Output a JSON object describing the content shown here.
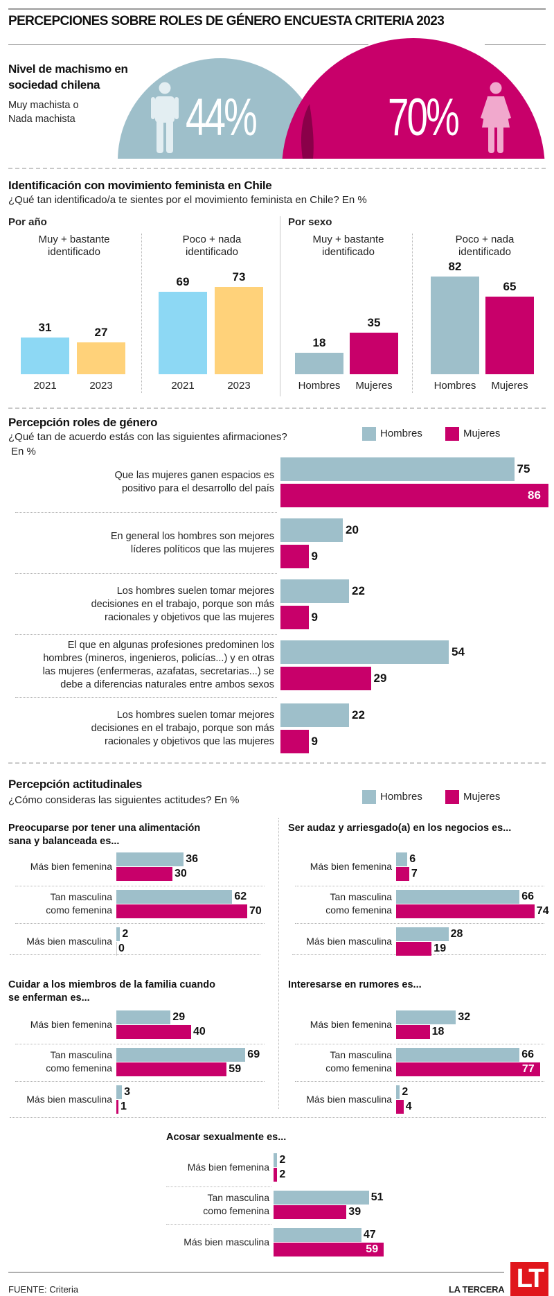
{
  "header": {
    "title": "PERCEPCIONES SOBRE ROLES DE GÉNERO ENCUESTA CRITERIA 2023"
  },
  "machismo": {
    "title_line1": "Nivel de machismo en",
    "title_line2": "sociedad chilena",
    "sub_line1": "Muy machista o",
    "sub_line2": "Nada machista",
    "men_value": "44%",
    "women_value": "70%",
    "men_icon": "man-icon",
    "women_icon": "woman-icon"
  },
  "colors": {
    "hombres": "#9ebfca",
    "mujeres": "#c8006a",
    "y2021": "#8dd8f4",
    "y2023": "#ffd27a",
    "logo": "#e0161c"
  },
  "legend": {
    "hombres": "Hombres",
    "mujeres": "Mujeres"
  },
  "chart_data": [
    {
      "type": "bar",
      "title": "Identificación con movimiento feminista en Chile",
      "subtitle": "¿Qué tan identificado/a te sientes por el movimiento feminista en Chile? En %",
      "panel": "Por año",
      "groups": [
        {
          "label": "Muy + bastante identificado",
          "categories": [
            "2021",
            "2023"
          ],
          "values": [
            31,
            27
          ]
        },
        {
          "label": "Poco + nada identificado",
          "categories": [
            "2021",
            "2023"
          ],
          "values": [
            69,
            73
          ]
        }
      ]
    },
    {
      "type": "bar",
      "panel": "Por sexo",
      "groups": [
        {
          "label": "Muy + bastante identificado",
          "categories": [
            "Hombres",
            "Mujeres"
          ],
          "values": [
            18,
            35
          ]
        },
        {
          "label": "Poco + nada identificado",
          "categories": [
            "Hombres",
            "Mujeres"
          ],
          "values": [
            82,
            65
          ]
        }
      ]
    },
    {
      "type": "bar",
      "orientation": "horizontal",
      "title": "Percepción roles de género",
      "subtitle": "¿Qué tan de acuerdo estás con las siguientes afirmaciones?",
      "unit": "En %",
      "legend": [
        "Hombres",
        "Mujeres"
      ],
      "legend_position": "top-right",
      "items": [
        {
          "label": "Que las mujeres ganen espacios es positivo para el desarrollo del país",
          "hombres": 75,
          "mujeres": 86
        },
        {
          "label": "En general los hombres son mejores líderes políticos que las mujeres",
          "hombres": 20,
          "mujeres": 9
        },
        {
          "label": "Los hombres suelen tomar mejores decisiones en el trabajo, porque son más racionales y objetivos que las mujeres",
          "hombres": 22,
          "mujeres": 9
        },
        {
          "label": "El que en algunas profesiones predominen los hombres (mineros, ingenieros, policías...) y en otras las mujeres (enfermeras, azafatas, secretarias...) se debe a diferencias naturales entre ambos sexos",
          "hombres": 54,
          "mujeres": 29
        },
        {
          "label": "Los hombres suelen tomar mejores decisiones en el trabajo, porque son más racionales y objetivos que las mujeres",
          "hombres": 22,
          "mujeres": 9
        }
      ]
    },
    {
      "type": "bar",
      "orientation": "horizontal",
      "title": "Percepción actitudinales",
      "subtitle": "¿Cómo consideras las siguientes actitudes? En %",
      "legend": [
        "Hombres",
        "Mujeres"
      ],
      "legend_position": "top-right",
      "categories": [
        "Más bien femenina",
        "Tan masculina como femenina",
        "Más bien masculina"
      ],
      "panels": [
        {
          "title": "Preocuparse por tener una alimentación sana y balanceada es...",
          "hombres": [
            36,
            62,
            2
          ],
          "mujeres": [
            30,
            70,
            0
          ]
        },
        {
          "title": "Ser audaz y arriesgado(a) en los negocios es...",
          "hombres": [
            6,
            66,
            28
          ],
          "mujeres": [
            7,
            74,
            19
          ]
        },
        {
          "title": "Cuidar a los miembros de la familia cuando se enferman es...",
          "hombres": [
            29,
            69,
            3
          ],
          "mujeres": [
            40,
            59,
            1
          ]
        },
        {
          "title": "Interesarse en rumores es...",
          "hombres": [
            32,
            66,
            2
          ],
          "mujeres": [
            18,
            77,
            4
          ]
        },
        {
          "title": "Acosar sexualmente es...",
          "hombres": [
            2,
            51,
            47
          ],
          "mujeres": [
            2,
            39,
            59
          ]
        }
      ]
    }
  ],
  "texts": {
    "fem_title": "Identificación con movimiento feminista en Chile",
    "fem_sub": "¿Qué tan identificado/a te sientes por el movimiento feminista en Chile? En %",
    "por_anio": "Por año",
    "por_sexo": "Por sexo",
    "muy_l1": "Muy + bastante",
    "muy_l2": "identificado",
    "poco_l1": "Poco + nada",
    "poco_l2": "identificado",
    "roles_title": "Percepción roles de género",
    "roles_sub": "¿Qué tan de acuerdo estás con las siguientes afirmaciones?",
    "roles_unit": "En %",
    "roles_labels": [
      [
        "Que las mujeres ganen espacios es",
        "positivo para el desarrollo del país"
      ],
      [
        "En general los hombres son mejores",
        "líderes políticos que las mujeres"
      ],
      [
        "Los hombres suelen tomar mejores",
        "decisiones en el trabajo, porque son más",
        "racionales y objetivos que las mujeres"
      ],
      [
        "El que en algunas profesiones predominen los",
        "hombres (mineros, ingenieros, policías...) y en otras",
        "las mujeres (enfermeras, azafatas, secretarias...) se",
        "debe a diferencias naturales entre ambos sexos"
      ],
      [
        "Los hombres suelen tomar mejores",
        "decisiones en el trabajo, porque son más",
        "racionales y objetivos que las mujeres"
      ]
    ],
    "act_title": "Percepción actitudinales",
    "act_sub": "¿Cómo consideras las siguientes actitudes? En %",
    "panel_titles": [
      [
        "Preocuparse por tener una alimentación",
        "sana y balanceada es..."
      ],
      [
        "Ser audaz y arriesgado(a) en los negocios es..."
      ],
      [
        "Cuidar a los miembros de la familia cuando",
        "se enferman es..."
      ],
      [
        "Interesarse en rumores es..."
      ],
      [
        "Acosar sexualmente es..."
      ]
    ],
    "cat_labels": [
      [
        "Más bien femenina"
      ],
      [
        "Tan masculina",
        "como femenina"
      ],
      [
        "Más bien masculina"
      ]
    ]
  },
  "footer": {
    "source": "FUENTE: Criteria",
    "brand": "LA TERCERA",
    "logo": "LT"
  }
}
